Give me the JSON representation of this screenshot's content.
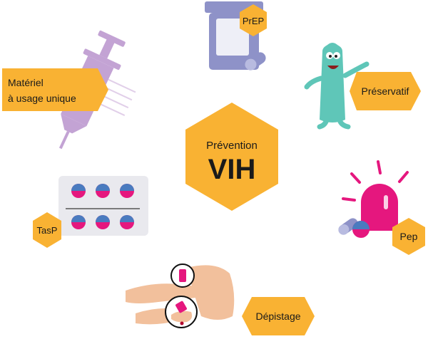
{
  "center": {
    "line1": "Prévention",
    "line2": "VIH"
  },
  "labels": {
    "materiel_line1": "Matériel",
    "materiel_line2": "à usage unique",
    "prep": "PrEP",
    "preservatif": "Préservatif",
    "tasp": "TasP",
    "pep": "Pep",
    "depistage": "Dépistage"
  },
  "colors": {
    "hexagon": "#f9b233",
    "syringe": "#c3a3d4",
    "bottle": "#8e92c8",
    "condom": "#5fc6b8",
    "pep_pink": "#e5177e",
    "pill_blue": "#4a7bbf",
    "skin": "#f2c09c",
    "blister": "#e9e9ee"
  },
  "icons": [
    "syringe-icon",
    "pill-bottle-icon",
    "condom-mascot-icon",
    "blister-pack-icon",
    "alarm-pill-icon",
    "finger-prick-icon"
  ]
}
